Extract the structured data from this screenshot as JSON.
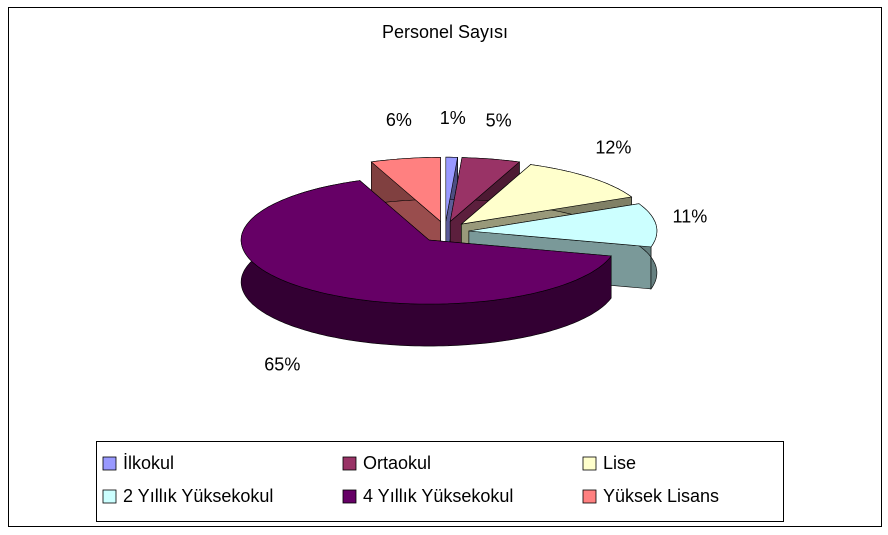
{
  "chart_data": {
    "type": "pie",
    "title": "Personel Sayısı",
    "categories": [
      "İlkokul",
      "Ortaokul",
      "Lise",
      "2 Yıllık Yüksekokul",
      "4 Yıllık Yüksekokul",
      "Yüksek Lisans"
    ],
    "values": [
      1,
      5,
      12,
      11,
      65,
      6
    ],
    "value_labels": [
      "1%",
      "5%",
      "12%",
      "11%",
      "65%",
      "6%"
    ],
    "colors": [
      "#9999ff",
      "#993366",
      "#ffffcc",
      "#ccffff",
      "#660066",
      "#ff8080"
    ],
    "legend": "bottom"
  }
}
